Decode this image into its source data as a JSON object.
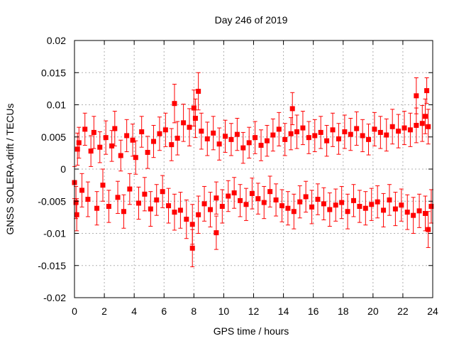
{
  "chart_data": {
    "type": "scatter",
    "title": "Day 246 of 2019",
    "xlabel": "GPS time / hours",
    "ylabel": "GNSS SOLERA-drift / TECUs",
    "xlim": [
      0,
      24
    ],
    "ylim": [
      -0.02,
      0.02
    ],
    "x_ticks": [
      "0",
      "2",
      "4",
      "6",
      "8",
      "10",
      "12",
      "14",
      "16",
      "18",
      "20",
      "22",
      "24"
    ],
    "y_ticks": [
      "-0.02",
      "-0.015",
      "-0.01",
      "-0.005",
      "0",
      "0.005",
      "0.01",
      "0.015",
      "0.02"
    ],
    "grid": true,
    "legend": "none",
    "series_color": "#ff0000",
    "error_bars": true,
    "series": [
      {
        "x": [
          0.1,
          0.3,
          0.5,
          0.7,
          0.9,
          1.1,
          1.3,
          1.5,
          1.7,
          1.9,
          2.1,
          2.3,
          2.5,
          2.7,
          2.9,
          3.1,
          3.3,
          3.5,
          3.7,
          3.9,
          4.1,
          4.3,
          4.5,
          4.7,
          4.9,
          5.1,
          5.3,
          5.5,
          5.7,
          5.9,
          6.1,
          6.3,
          6.5,
          6.7,
          6.9,
          7.1,
          7.3,
          7.5,
          7.7,
          7.9,
          8.1,
          8.3,
          8.5,
          8.7,
          8.9,
          9.1,
          9.3,
          9.5,
          9.7,
          9.9,
          10.1,
          10.3,
          10.5,
          10.7,
          10.9,
          11.1,
          11.3,
          11.5,
          11.7,
          11.9,
          12.1,
          12.3,
          12.5,
          12.7,
          12.9,
          13.1,
          13.3,
          13.5,
          13.7,
          13.9,
          14.1,
          14.3,
          14.5,
          14.7,
          14.9,
          15.1,
          15.3,
          15.5,
          15.7,
          15.9,
          16.1,
          16.3,
          16.5,
          16.7,
          16.9,
          17.1,
          17.3,
          17.5,
          17.7,
          17.9,
          18.1,
          18.3,
          18.5,
          18.7,
          18.9,
          19.1,
          19.3,
          19.5,
          19.7,
          19.9,
          20.1,
          20.3,
          20.5,
          20.7,
          20.9,
          21.1,
          21.3,
          21.5,
          21.7,
          21.9,
          22.1,
          22.3,
          22.5,
          22.7,
          22.9,
          23.1,
          23.3,
          23.5,
          23.7,
          23.9,
          0.0,
          0.2,
          6.7,
          7.9,
          8.3,
          8.0,
          22.9,
          23.6,
          14.6,
          23.7,
          23.5,
          0.15,
          9.5
        ],
        "y": [
          -0.0052,
          0.0041,
          -0.0033,
          0.0062,
          -0.0047,
          0.0028,
          0.0057,
          -0.0061,
          0.0034,
          -0.0025,
          0.0049,
          -0.0058,
          0.0036,
          0.0063,
          -0.0044,
          0.0021,
          -0.0066,
          0.0052,
          -0.0031,
          0.0045,
          0.0018,
          -0.0053,
          0.0058,
          -0.0039,
          0.0026,
          -0.0062,
          0.0043,
          -0.0048,
          0.0055,
          -0.0035,
          0.0061,
          -0.0057,
          0.0038,
          -0.0067,
          0.0048,
          -0.0064,
          0.0072,
          -0.0078,
          0.0065,
          -0.0086,
          0.0079,
          -0.0071,
          0.0059,
          -0.0054,
          0.0047,
          -0.0063,
          0.0056,
          -0.0045,
          0.0039,
          -0.0058,
          0.0051,
          -0.0042,
          0.0046,
          -0.0037,
          0.0054,
          -0.0049,
          0.0033,
          -0.0055,
          0.0041,
          -0.0038,
          0.0049,
          -0.0046,
          0.0037,
          -0.0052,
          0.0044,
          -0.0035,
          0.0053,
          -0.0048,
          0.0062,
          -0.0057,
          0.0046,
          -0.0061,
          0.0055,
          -0.0066,
          0.0058,
          -0.0051,
          0.0064,
          -0.0043,
          0.0049,
          -0.0059,
          0.0052,
          -0.0047,
          0.0057,
          -0.0054,
          0.0044,
          -0.0063,
          0.0061,
          -0.0056,
          0.0047,
          -0.0052,
          0.0058,
          -0.0066,
          0.0054,
          -0.0049,
          0.0063,
          -0.0058,
          0.0052,
          -0.0061,
          0.0046,
          -0.0055,
          0.0062,
          -0.0051,
          0.0057,
          -0.0064,
          0.0053,
          -0.0048,
          0.0066,
          -0.0062,
          0.0059,
          -0.0056,
          0.0064,
          -0.0067,
          0.0061,
          -0.0072,
          0.0068,
          -0.0065,
          0.0071,
          -0.0069,
          0.0066,
          -0.0058,
          -0.0021,
          0.0031,
          0.0102,
          -0.0123,
          0.0121,
          0.0095,
          0.0114,
          0.0122,
          0.0094,
          -0.0094,
          0.0082,
          -0.0071,
          -0.0099
        ],
        "yerr": [
          0.0025,
          0.0024,
          0.0026,
          0.0025,
          0.0027,
          0.0024,
          0.0025,
          0.0026,
          0.0024,
          0.0025,
          0.0026,
          0.0025,
          0.0024,
          0.0027,
          0.0025,
          0.0024,
          0.0026,
          0.0025,
          0.0024,
          0.0025,
          0.0026,
          0.0025,
          0.0024,
          0.0026,
          0.0025,
          0.0027,
          0.0025,
          0.0024,
          0.0026,
          0.0025,
          0.0026,
          0.0027,
          0.0025,
          0.0028,
          0.0026,
          0.0028,
          0.0029,
          0.003,
          0.0029,
          0.0031,
          0.003,
          0.0029,
          0.0028,
          0.0027,
          0.0026,
          0.0027,
          0.0026,
          0.0025,
          0.0025,
          0.0026,
          0.0025,
          0.0024,
          0.0025,
          0.0024,
          0.0025,
          0.0025,
          0.0024,
          0.0025,
          0.0024,
          0.0024,
          0.0025,
          0.0024,
          0.0024,
          0.0025,
          0.0024,
          0.0024,
          0.0025,
          0.0025,
          0.0026,
          0.0025,
          0.0025,
          0.0026,
          0.0025,
          0.0027,
          0.0026,
          0.0025,
          0.0026,
          0.0024,
          0.0025,
          0.0026,
          0.0025,
          0.0024,
          0.0025,
          0.0025,
          0.0024,
          0.0026,
          0.0026,
          0.0025,
          0.0024,
          0.0025,
          0.0026,
          0.0027,
          0.0025,
          0.0025,
          0.0026,
          0.0025,
          0.0025,
          0.0026,
          0.0024,
          0.0025,
          0.0026,
          0.0025,
          0.0025,
          0.0026,
          0.0025,
          0.0024,
          0.0027,
          0.0026,
          0.0026,
          0.0025,
          0.0026,
          0.0027,
          0.0026,
          0.0028,
          0.0027,
          0.0026,
          0.0028,
          0.0027,
          0.0027,
          0.0026,
          0.0025,
          0.0025,
          0.003,
          0.0029,
          0.0029,
          0.0028,
          0.0028,
          0.002,
          0.0025,
          0.0028,
          0.0027,
          0.0025,
          0.0026
        ]
      }
    ]
  }
}
